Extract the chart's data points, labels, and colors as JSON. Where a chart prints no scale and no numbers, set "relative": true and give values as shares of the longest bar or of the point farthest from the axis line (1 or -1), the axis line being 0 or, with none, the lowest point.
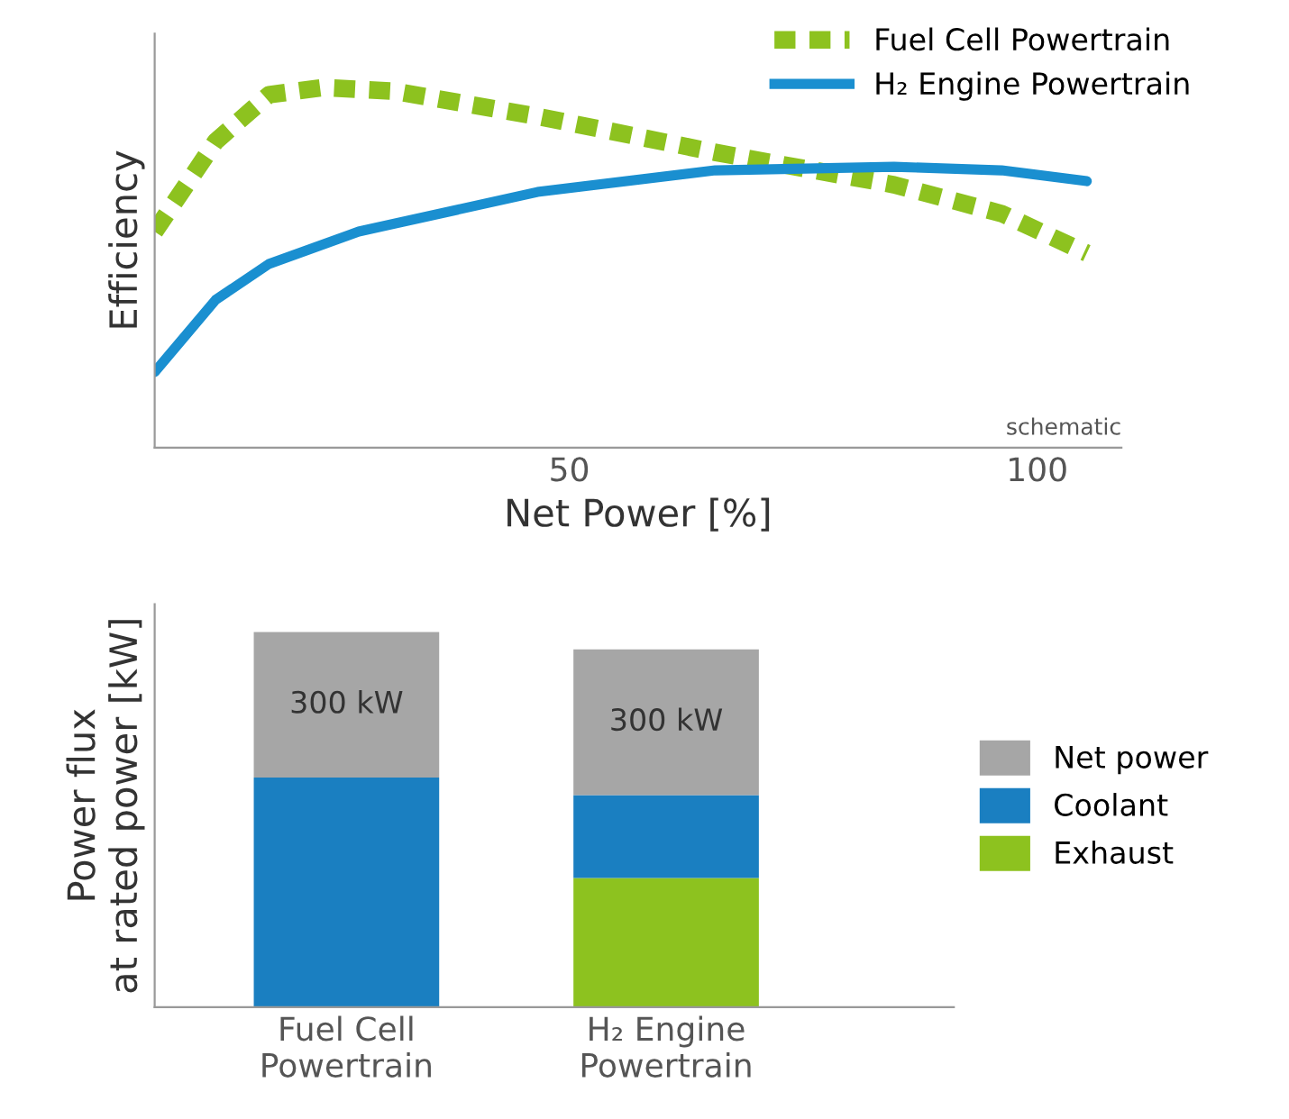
{
  "chart_data": [
    {
      "type": "line",
      "xlabel": "Net Power [%]",
      "ylabel": "Efficiency",
      "relative": true,
      "xlim": [
        5.7,
        109
      ],
      "xticks": [
        50,
        100
      ],
      "tick_labels": "x",
      "legend": "top right",
      "grid": false,
      "annotations": [
        "schematic"
      ],
      "series": [
        {
          "name": "Fuel Cell Powertrain",
          "color": "#8dc21f",
          "line_style": "dashed",
          "x": [
            5.7,
            12.2,
            17.9,
            23.7,
            31.3,
            46.6,
            65.6,
            84.7,
            96.2,
            105.3
          ],
          "values": [
            0.6,
            0.85,
            0.98,
            1.0,
            0.99,
            0.92,
            0.82,
            0.73,
            0.65,
            0.54
          ]
        },
        {
          "name": "H₂ Engine Powertrain",
          "color": "#1a8fd0",
          "line_style": "solid",
          "x": [
            5.7,
            12.2,
            17.9,
            27.5,
            46.6,
            65.6,
            84.7,
            96.2,
            105.3
          ],
          "values": [
            0.21,
            0.41,
            0.51,
            0.6,
            0.71,
            0.77,
            0.78,
            0.77,
            0.74
          ]
        }
      ]
    },
    {
      "type": "bar",
      "stacked": true,
      "ylim": [
        0,
        830
      ],
      "ylabel": "Power flux\nat rated power [kW]",
      "categories": [
        "Fuel Cell\nPowertrain",
        "H₂ Engine\nPowertrain"
      ],
      "tick_labels": "x",
      "legend": "right",
      "grid": false,
      "series": [
        {
          "name": "Exhaust",
          "color": "#8dc21f",
          "values": [
            0,
            266
          ]
        },
        {
          "name": "Coolant",
          "color": "#1a7fc1",
          "values": [
            473,
            171
          ]
        },
        {
          "name": "Net power",
          "color": "#a6a6a6",
          "values": [
            300,
            300
          ],
          "value_labels": [
            "300 kW",
            "300 kW"
          ]
        }
      ]
    }
  ]
}
